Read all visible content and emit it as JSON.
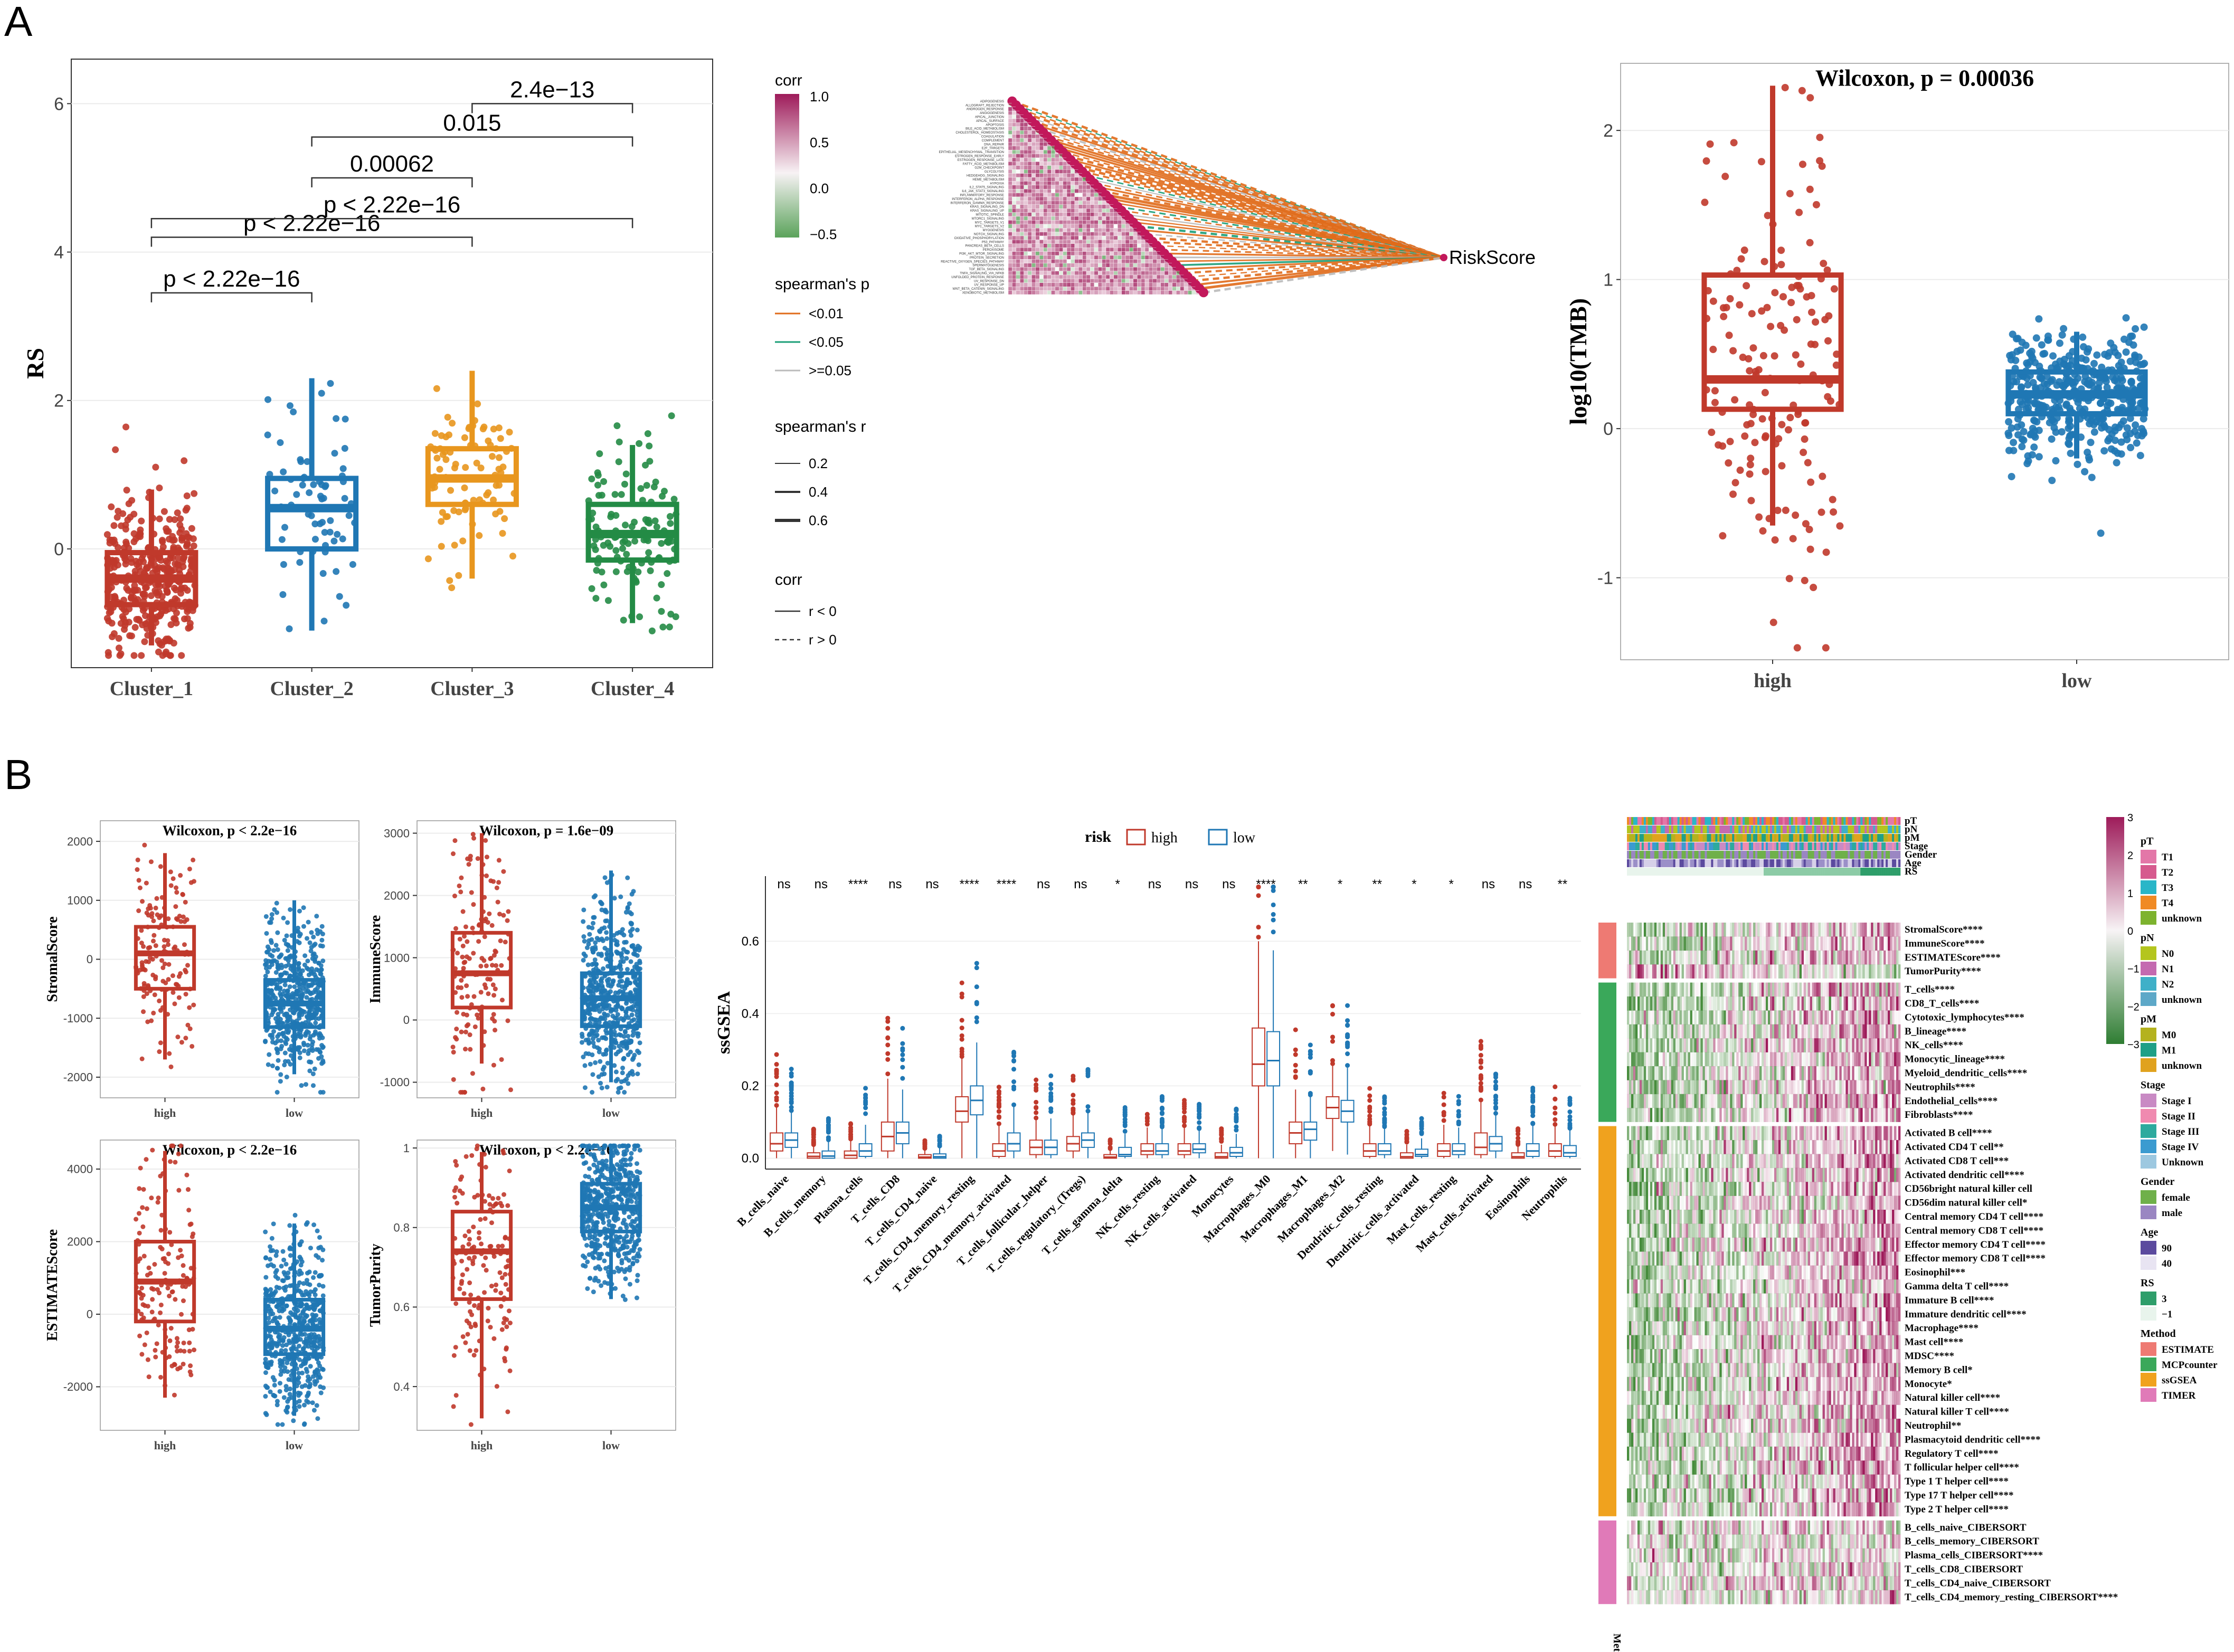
{
  "colors": {
    "high": "#C0392B",
    "low": "#1F77B4",
    "c1": "#C0392B",
    "c2": "#1F77B4",
    "c3": "#E8961E",
    "c4": "#238B45",
    "heatHigh": "#9E1B5A",
    "heatLow": "#5BA35B",
    "orange": "#E06B1A",
    "green": "#1A9E77",
    "grey": "#BBBBBB"
  },
  "panels": {
    "A": "A",
    "B": "B"
  },
  "chart_data": [
    {
      "id": "rs_cluster",
      "type": "box",
      "ylabel": "RS",
      "ylim": [
        -1.6,
        6.6
      ],
      "yticks": [
        0,
        2,
        4,
        6
      ],
      "categories": [
        "Cluster_1",
        "Cluster_2",
        "Cluster_3",
        "Cluster_4"
      ],
      "boxes": [
        {
          "q1": -0.75,
          "median": -0.4,
          "q3": -0.05,
          "lo": -1.3,
          "hi": 0.8
        },
        {
          "q1": 0.0,
          "median": 0.55,
          "q3": 0.95,
          "lo": -1.1,
          "hi": 2.3
        },
        {
          "q1": 0.6,
          "median": 0.95,
          "q3": 1.35,
          "lo": -0.4,
          "hi": 2.4
        },
        {
          "q1": -0.15,
          "median": 0.2,
          "q3": 0.6,
          "lo": -1.0,
          "hi": 1.4
        }
      ],
      "comparisons": [
        {
          "a": 0,
          "b": 1,
          "y": 3.45,
          "label": "p < 2.22e−16"
        },
        {
          "a": 0,
          "b": 2,
          "y": 4.2,
          "label": "p < 2.22e−16"
        },
        {
          "a": 0,
          "b": 3,
          "y": 4.45,
          "label": "p < 2.22e−16"
        },
        {
          "a": 1,
          "b": 2,
          "y": 5.0,
          "label": "0.00062"
        },
        {
          "a": 1,
          "b": 3,
          "y": 5.55,
          "label": "0.015"
        },
        {
          "a": 2,
          "b": 3,
          "y": 6.0,
          "label": "2.4e−13"
        }
      ]
    },
    {
      "id": "corr_heat",
      "type": "heatmap",
      "target": "RiskScore",
      "rows": [
        "ADIPOGENESIS",
        "ALLOGRAFT_REJECTION",
        "ANDROGEN_RESPONSE",
        "ANGIOGENESIS",
        "APICAL_JUNCTION",
        "APICAL_SURFACE",
        "APOPTOSIS",
        "BILE_ACID_METABOLISM",
        "CHOLESTEROL_HOMEOSTASIS",
        "COAGULATION",
        "COMPLEMENT",
        "DNA_REPAIR",
        "E2F_TARGETS",
        "EPITHELIAL_MESENCHYMAL_TRANSITION",
        "ESTROGEN_RESPONSE_EARLY",
        "ESTROGEN_RESPONSE_LATE",
        "FATTY_ACID_METABOLISM",
        "G2M_CHECKPOINT",
        "GLYCOLYSIS",
        "HEDGEHOG_SIGNALING",
        "HEME_METABOLISM",
        "HYPOXIA",
        "IL2_STAT5_SIGNALING",
        "IL6_JAK_STAT3_SIGNALING",
        "INFLAMMATORY_RESPONSE",
        "INTERFERON_ALPHA_RESPONSE",
        "INTERFERON_GAMMA_RESPONSE",
        "KRAS_SIGNALING_DN",
        "KRAS_SIGNALING_UP",
        "MITOTIC_SPINDLE",
        "MTORC1_SIGNALING",
        "MYC_TARGETS_V1",
        "MYC_TARGETS_V2",
        "MYOGENESIS",
        "NOTCH_SIGNALING",
        "OXIDATIVE_PHOSPHORYLATION",
        "P53_PATHWAY",
        "PANCREAS_BETA_CELLS",
        "PEROXISOME",
        "PI3K_AKT_MTOR_SIGNALING",
        "PROTEIN_SECRETION",
        "REACTIVE_OXYGEN_SPECIES_PATHWAY",
        "SPERMATOGENESIS",
        "TGF_BETA_SIGNALING",
        "TNFA_SIGNALING_VIA_NFKB",
        "UNFOLDED_PROTEIN_RESPONSE",
        "UV_RESPONSE_DN",
        "UV_RESPONSE_UP",
        "WNT_BETA_CATENIN_SIGNALING",
        "XENOBIOTIC_METABOLISM"
      ],
      "legend": {
        "corr_title": "corr",
        "corr_ticks": [
          "1.0",
          "0.5",
          "0.0",
          "−0.5"
        ],
        "p_title": "spearman's p",
        "p_items": [
          "<0.01",
          "<0.05",
          ">=0.05"
        ],
        "r_title": "spearman's r",
        "r_items": [
          "0.2",
          "0.4",
          "0.6"
        ],
        "corr2_title": "corr",
        "corr2_items": [
          "r < 0",
          "r > 0"
        ]
      }
    },
    {
      "id": "tmb",
      "type": "box",
      "title": "Wilcoxon, p = 0.00036",
      "ylabel": "log10(TMB)",
      "ylim": [
        -1.55,
        2.45
      ],
      "yticks": [
        -1,
        0,
        1,
        2
      ],
      "categories": [
        "high",
        "low"
      ],
      "boxes": [
        {
          "q1": 0.13,
          "median": 0.33,
          "q3": 1.03,
          "lo": -0.65,
          "hi": 2.3
        },
        {
          "q1": 0.1,
          "median": 0.23,
          "q3": 0.38,
          "lo": -0.2,
          "hi": 0.65
        }
      ]
    },
    {
      "id": "stromal",
      "type": "box",
      "title": "Wilcoxon, p < 2.2e−16",
      "ylabel": "StromalScore",
      "ylim": [
        -2350,
        2350
      ],
      "yticks": [
        -2000,
        -1000,
        0,
        1000,
        2000
      ],
      "categories": [
        "high",
        "low"
      ],
      "boxes": [
        {
          "q1": -500,
          "median": 100,
          "q3": 550,
          "lo": -1700,
          "hi": 1800
        },
        {
          "q1": -1150,
          "median": -750,
          "q3": -350,
          "lo": -1950,
          "hi": 1000
        }
      ]
    },
    {
      "id": "immune",
      "type": "box",
      "title": "Wilcoxon, p = 1.6e−09",
      "ylabel": "ImmuneScore",
      "ylim": [
        -1250,
        3200
      ],
      "yticks": [
        -1000,
        0,
        1000,
        2000,
        3000
      ],
      "categories": [
        "high",
        "low"
      ],
      "boxes": [
        {
          "q1": 200,
          "median": 750,
          "q3": 1400,
          "lo": -700,
          "hi": 3000
        },
        {
          "q1": -100,
          "median": 350,
          "q3": 750,
          "lo": -1000,
          "hi": 2400
        }
      ]
    },
    {
      "id": "estimate",
      "type": "box",
      "title": "Wilcoxon, p < 2.2e−16",
      "ylabel": "ESTIMATEScore",
      "ylim": [
        -3200,
        4800
      ],
      "yticks": [
        -2000,
        0,
        2000,
        4000
      ],
      "categories": [
        "high",
        "low"
      ],
      "boxes": [
        {
          "q1": -200,
          "median": 900,
          "q3": 2000,
          "lo": -2300,
          "hi": 4500
        },
        {
          "q1": -1100,
          "median": -400,
          "q3": 400,
          "lo": -2800,
          "hi": 2500
        }
      ]
    },
    {
      "id": "purity",
      "type": "box",
      "title": "Wilcoxon, p < 2.2e−16",
      "ylabel": "TumorPurity",
      "ylim": [
        0.29,
        1.02
      ],
      "yticks": [
        0.4,
        0.6,
        0.8,
        1.0
      ],
      "categories": [
        "high",
        "low"
      ],
      "boxes": [
        {
          "q1": 0.62,
          "median": 0.74,
          "q3": 0.84,
          "lo": 0.32,
          "hi": 0.99
        },
        {
          "q1": 0.79,
          "median": 0.85,
          "q3": 0.91,
          "lo": 0.62,
          "hi": 1.0
        }
      ]
    },
    {
      "id": "ssgsea",
      "type": "box",
      "ylabel": "ssGSEA",
      "ylim": [
        -0.03,
        0.78
      ],
      "yticks": [
        0.0,
        0.2,
        0.4,
        0.6
      ],
      "legend_title": "risk",
      "legend_items": [
        "high",
        "low"
      ],
      "categories": [
        "B_cells_naive",
        "B_cells_memory",
        "Plasma_cells",
        "T_cells_CD8",
        "T_cells_CD4_naive",
        "T_cells_CD4_memory_resting",
        "T_cells_CD4_memory_activated",
        "T_cells_follicular_helper",
        "T_cells_regulatory_(Tregs)",
        "T_cells_gamma_delta",
        "NK_cells_resting",
        "NK_cells_activated",
        "Monocytes",
        "Macrophages_M0",
        "Macrophages_M1",
        "Macrophages_M2",
        "Dendritic_cells_resting",
        "Dendritic_cells_activated",
        "Mast_cells_resting",
        "Mast_cells_activated",
        "Eosinophils",
        "Neutrophils"
      ],
      "signif": [
        "ns",
        "ns",
        "****",
        "ns",
        "ns",
        "****",
        "****",
        "ns",
        "ns",
        "*",
        "ns",
        "ns",
        "ns",
        "****",
        "**",
        "*",
        "**",
        "*",
        "*",
        "ns",
        "ns",
        "**"
      ],
      "high": [
        [
          0.02,
          0.04,
          0.07
        ],
        [
          0,
          0.005,
          0.015
        ],
        [
          0,
          0.008,
          0.02
        ],
        [
          0.02,
          0.06,
          0.1
        ],
        [
          0,
          0.003,
          0.01
        ],
        [
          0.1,
          0.13,
          0.17
        ],
        [
          0.005,
          0.02,
          0.04
        ],
        [
          0.01,
          0.03,
          0.05
        ],
        [
          0.02,
          0.04,
          0.06
        ],
        [
          0,
          0.003,
          0.01
        ],
        [
          0.01,
          0.02,
          0.04
        ],
        [
          0.01,
          0.02,
          0.04
        ],
        [
          0,
          0.004,
          0.015
        ],
        [
          0.2,
          0.26,
          0.36
        ],
        [
          0.04,
          0.07,
          0.1
        ],
        [
          0.11,
          0.14,
          0.17
        ],
        [
          0.005,
          0.02,
          0.04
        ],
        [
          0,
          0.004,
          0.015
        ],
        [
          0.005,
          0.02,
          0.04
        ],
        [
          0.01,
          0.03,
          0.07
        ],
        [
          0,
          0.004,
          0.015
        ],
        [
          0.005,
          0.02,
          0.04
        ]
      ],
      "low": [
        [
          0.03,
          0.05,
          0.07
        ],
        [
          0,
          0.006,
          0.02
        ],
        [
          0.005,
          0.02,
          0.04
        ],
        [
          0.04,
          0.07,
          0.1
        ],
        [
          0,
          0.004,
          0.012
        ],
        [
          0.12,
          0.16,
          0.2
        ],
        [
          0.02,
          0.04,
          0.07
        ],
        [
          0.01,
          0.03,
          0.05
        ],
        [
          0.03,
          0.05,
          0.07
        ],
        [
          0.005,
          0.01,
          0.03
        ],
        [
          0.01,
          0.02,
          0.04
        ],
        [
          0.015,
          0.025,
          0.04
        ],
        [
          0.005,
          0.015,
          0.03
        ],
        [
          0.2,
          0.27,
          0.35
        ],
        [
          0.05,
          0.08,
          0.1
        ],
        [
          0.1,
          0.13,
          0.16
        ],
        [
          0.01,
          0.02,
          0.04
        ],
        [
          0.005,
          0.01,
          0.025
        ],
        [
          0.01,
          0.02,
          0.04
        ],
        [
          0.02,
          0.04,
          0.06
        ],
        [
          0.005,
          0.02,
          0.04
        ],
        [
          0.005,
          0.015,
          0.035
        ]
      ]
    },
    {
      "id": "immune_heat",
      "type": "heatmap",
      "annot_rows": [
        "pT",
        "pN",
        "pM",
        "Stage",
        "Gender",
        "Age",
        "RS"
      ],
      "groups": [
        {
          "method": "ESTIMATE",
          "rows": [
            "StromalScore****",
            "ImmuneScore****",
            "ESTIMATEScore****",
            "TumorPurity****"
          ]
        },
        {
          "method": "MCPcounter",
          "rows": [
            "T_cells****",
            "CD8_T_cells****",
            "Cytotoxic_lymphocytes****",
            "B_lineage****",
            "NK_cells****",
            "Monocytic_lineage****",
            "Myeloid_dendritic_cells****",
            "Neutrophils****",
            "Endothelial_cells****",
            "Fibroblasts****"
          ]
        },
        {
          "method": "ssGSEA",
          "rows": [
            "Activated B cell****",
            "Activated CD4 T cell**",
            "Activated CD8 T cell***",
            "Activated dendritic cell****",
            "CD56bright natural killer cell",
            "CD56dim natural killer cell*",
            "Central memory CD4 T cell****",
            "Central memory CD8 T cell****",
            "Effector memory CD4 T cell****",
            "Effector memory CD8 T cell****",
            "Eosinophil***",
            "Gamma delta T cell****",
            "Immature  B cell****",
            "Immature dendritic cell****",
            "Macrophage****",
            "Mast cell****",
            "MDSC****",
            "Memory B cell*",
            "Monocyte*",
            "Natural killer cell****",
            "Natural killer T cell****",
            "Neutrophil**",
            "Plasmacytoid dendritic cell****",
            "Regulatory T cell****",
            "T follicular helper cell****",
            "Type 1 T helper cell****",
            "Type 17 T helper cell****",
            "Type 2 T helper cell****"
          ]
        },
        {
          "method": "TIMER",
          "rows": [
            "B_cells_naive_CIBERSORT",
            "B_cells_memory_CIBERSORT",
            "Plasma_cells_CIBERSORT****",
            "T_cells_CD8_CIBERSORT",
            "T_cells_CD4_naive_CIBERSORT",
            "T_cells_CD4_memory_resting_CIBERSORT****"
          ]
        }
      ],
      "method_label": "Method",
      "colorbar_ticks": [
        "3",
        "2",
        "1",
        "0",
        "−1",
        "−2",
        "−3"
      ],
      "legend": [
        {
          "title": "pT",
          "items": [
            {
              "label": "T1",
              "color": "#E377A8"
            },
            {
              "label": "T2",
              "color": "#D65A8E"
            },
            {
              "label": "T3",
              "color": "#29B6C8"
            },
            {
              "label": "T4",
              "color": "#F08A24"
            },
            {
              "label": "unknown",
              "color": "#7DB32E"
            }
          ]
        },
        {
          "title": "pN",
          "items": [
            {
              "label": "N0",
              "color": "#B4C51E"
            },
            {
              "label": "N1",
              "color": "#C46AB0"
            },
            {
              "label": "N2",
              "color": "#3FB0C8"
            },
            {
              "label": "unknown",
              "color": "#5DA8C8"
            }
          ]
        },
        {
          "title": "pM",
          "items": [
            {
              "label": "M0",
              "color": "#B4B21E"
            },
            {
              "label": "M1",
              "color": "#1FA087"
            },
            {
              "label": "unknown",
              "color": "#E0A21E"
            }
          ]
        },
        {
          "title": "Stage",
          "items": [
            {
              "label": "Stage I",
              "color": "#C98AC4"
            },
            {
              "label": "Stage II",
              "color": "#F08AB0"
            },
            {
              "label": "Stage III",
              "color": "#2DAA9E"
            },
            {
              "label": "Stage IV",
              "color": "#3B9BD0"
            },
            {
              "label": "Unknown",
              "color": "#9DC8E0"
            }
          ]
        },
        {
          "title": "Gender",
          "items": [
            {
              "label": "female",
              "color": "#6FB04A"
            },
            {
              "label": "male",
              "color": "#9A86C2"
            }
          ]
        },
        {
          "title": "Age",
          "items": [
            {
              "label": "90",
              "color": "#5B4A9E"
            },
            {
              "label": "40",
              "color": "#E8E4F2"
            }
          ]
        },
        {
          "title": "RS",
          "items": [
            {
              "label": "3",
              "color": "#2E9E6A"
            },
            {
              "label": "−1",
              "color": "#E8F4EC"
            }
          ]
        },
        {
          "title": "Method",
          "items": [
            {
              "label": "ESTIMATE",
              "color": "#EE7A73"
            },
            {
              "label": "MCPcounter",
              "color": "#3AA85A"
            },
            {
              "label": "ssGSEA",
              "color": "#F0A21E"
            },
            {
              "label": "TIMER",
              "color": "#E07AB8"
            }
          ]
        }
      ]
    }
  ]
}
